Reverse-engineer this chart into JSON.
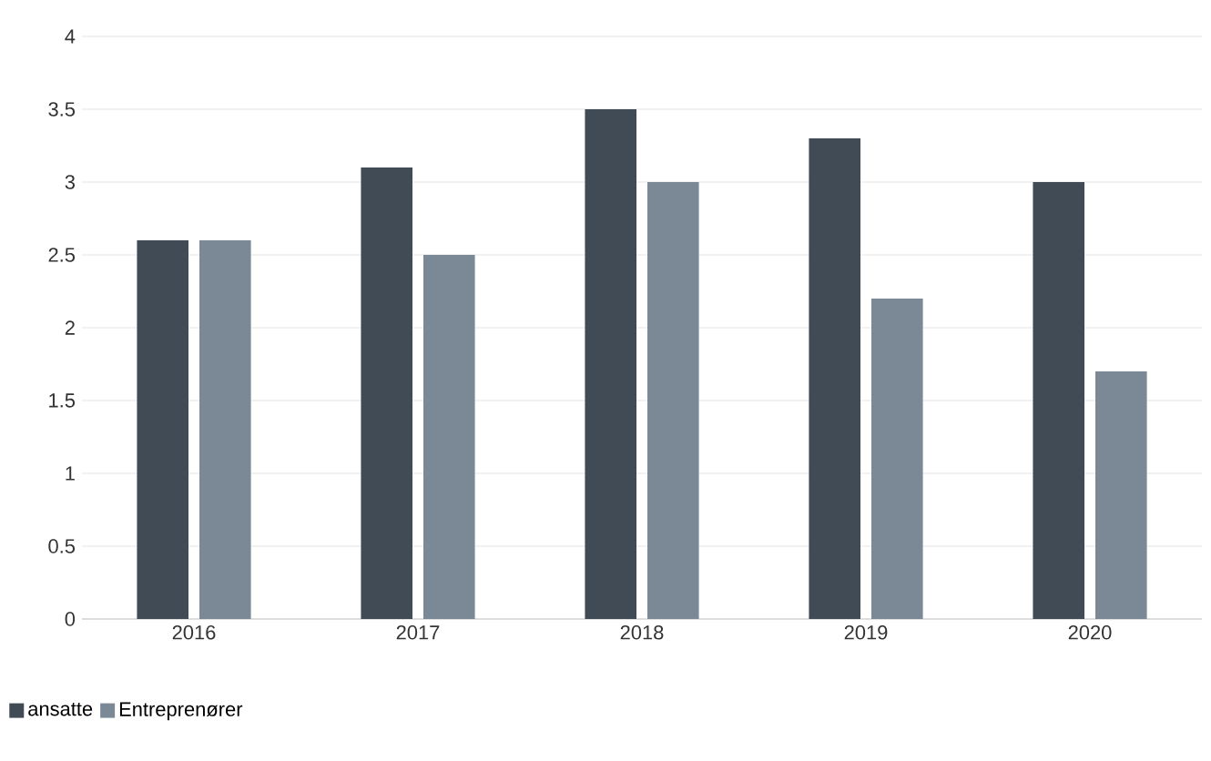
{
  "chart_data": {
    "type": "bar",
    "categories": [
      "2016",
      "2017",
      "2018",
      "2019",
      "2020"
    ],
    "series": [
      {
        "name": "ansatte",
        "color": "#414b55",
        "values": [
          2.6,
          3.1,
          3.5,
          3.3,
          3.0
        ]
      },
      {
        "name": "Entreprenører",
        "color": "#7a8995",
        "values": [
          2.6,
          2.5,
          3.0,
          2.2,
          1.7
        ]
      }
    ],
    "ylim": [
      0,
      4
    ],
    "yticks": [
      0,
      0.5,
      1,
      1.5,
      2,
      2.5,
      3,
      3.5,
      4
    ],
    "grid": "y",
    "legend": "bottom left"
  }
}
